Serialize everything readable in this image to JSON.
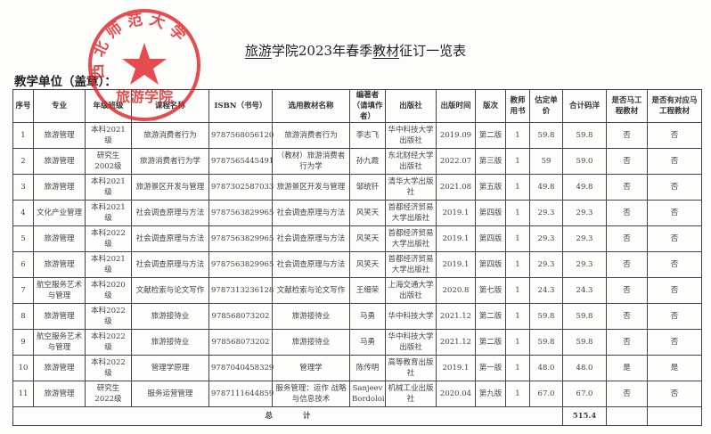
{
  "title": {
    "school": "旅游",
    "middle": "学院2023年春季",
    "material": "教材",
    "suffix": "征订一览表"
  },
  "unit_label": "教学单位（盖章）：",
  "stamp": {
    "outer_text": "西北师范大学",
    "inner_text": "旅游学院",
    "color": "#e0262b"
  },
  "headers": [
    "序号",
    "专业",
    "年级班级",
    "课程名称",
    "ISBN（书号）",
    "选用教材名称",
    "编著者（请填作者）",
    "出版社",
    "出版时间",
    "版次",
    "教师用书",
    "估定单价",
    "合计码洋",
    "是否马工程教材",
    "是否有对应马工程教材"
  ],
  "rows": [
    [
      "1",
      "旅游管理",
      "本科2021级",
      "旅游消费者行为",
      "9787568056120",
      "旅游消费者行为",
      "李志飞",
      "华中科技大学出版社",
      "2019.09",
      "第二版",
      "1",
      "59.8",
      "59.8",
      "否",
      "否"
    ],
    [
      "2",
      "旅游管理",
      "研究生2002级",
      "旅游消费者行为学",
      "9787565445491",
      "（教材）旅游消费者行为学",
      "孙九霞",
      "东北财经大学出版社",
      "2022.07",
      "第三版",
      "1",
      "59",
      "59.0",
      "否",
      "否"
    ],
    [
      "3",
      "旅游管理",
      "本科2021级",
      "旅游景区开发与管理",
      "9787302587033",
      "旅游景区开发与管理",
      "邹统钎",
      "清华大学出版社",
      "2021.08",
      "第五版",
      "1",
      "49.8",
      "49.8",
      "否",
      "否"
    ],
    [
      "4",
      "文化产业管理",
      "本科2021级",
      "社会调查原理与方法",
      "9787563829965",
      "社会调查原理与方法",
      "风笑天",
      "首都经济贸易大学出版社",
      "2019.1",
      "第四版",
      "1",
      "29.3",
      "29.3",
      "否",
      "否"
    ],
    [
      "5",
      "旅游管理",
      "本科2022级",
      "社会调查原理与方法",
      "9787563829965",
      "社会调查原理与方法",
      "风笑天",
      "首都经济贸易大学出版社",
      "2019.1",
      "第四版",
      "1",
      "29.3",
      "29.3",
      "否",
      "否"
    ],
    [
      "6",
      "旅游管理",
      "本科2021级",
      "社会调查原理与方法",
      "9787563829965",
      "社会调查原理与方法",
      "风笑天",
      "首都经济贸易大学出版社",
      "2019.1",
      "第四版",
      "1",
      "29.3",
      "29.3",
      "否",
      "否"
    ],
    [
      "7",
      "航空服务艺术与管理",
      "本科2020级",
      "文献检索与论文写作",
      "9787313236128",
      "文献检索与论文写作",
      "王细荣",
      "上海交通大学出版社",
      "2020.8",
      "第七版",
      "1",
      "24.3",
      "24.3",
      "否",
      "否"
    ],
    [
      "8",
      "旅游管理",
      "本科2022级",
      "旅游接待业",
      "978568073202",
      "旅游接待业",
      "马勇",
      "华中科技大学",
      "2021.12",
      "第二版",
      "1",
      "59.8",
      "59.8",
      "否",
      "否"
    ],
    [
      "9",
      "航空服务艺术与管理",
      "本科2022级",
      "旅游接待业",
      "978568073202",
      "旅游接待业",
      "马勇",
      "华中科技大学出版社",
      "2021.12",
      "第二版",
      "1",
      "59.8",
      "59.8",
      "否",
      "否"
    ],
    [
      "10",
      "旅游管理",
      "本科2022级",
      "管理学原理",
      "9787040458329",
      "管理学",
      "陈传明",
      "高等教育出版社",
      "2019.1",
      "第一版",
      "1",
      "48.0",
      "48.0",
      "是",
      "是"
    ],
    [
      "11",
      "旅游管理",
      "研究生2022级",
      "服务运营管理",
      "9787111644859",
      "服务管理：运作 战略与信息技术",
      "Sanjeev Bordoloi",
      "机械工业出版社",
      "2020.04",
      "第九版",
      "1",
      "67.0",
      "67.0",
      "否",
      "否"
    ]
  ],
  "total": {
    "label": "总　　　　计",
    "value": "515.4"
  }
}
